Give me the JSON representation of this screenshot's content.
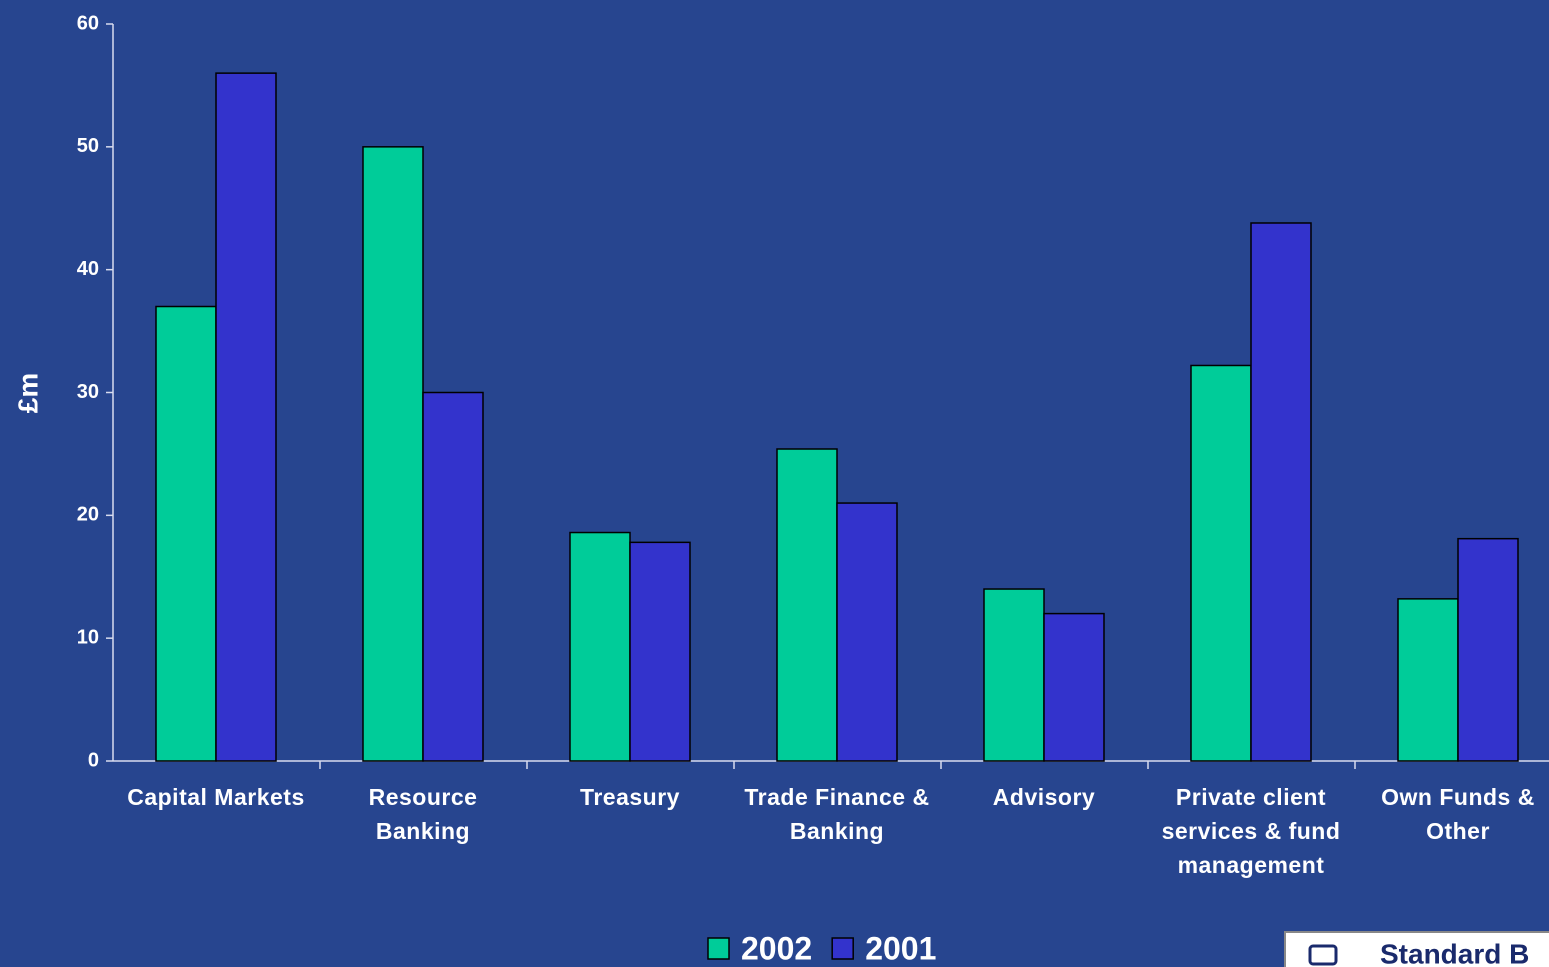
{
  "chart_data": {
    "type": "bar",
    "ylabel": "£m",
    "categories": [
      "Capital Markets",
      "Resource Banking",
      "Treasury",
      "Trade Finance & Banking",
      "Advisory",
      "Private client services & fund management",
      "Own Funds & Other"
    ],
    "series": [
      {
        "name": "2002",
        "color": "#00cc99",
        "values": [
          37,
          50,
          18.6,
          25.4,
          14,
          32.2,
          13.2
        ]
      },
      {
        "name": "2001",
        "color": "#3333cc",
        "values": [
          56,
          30,
          17.8,
          21,
          12,
          43.8,
          18.1
        ]
      }
    ],
    "ylim": [
      0,
      60
    ],
    "yticks": [
      0,
      10,
      20,
      30,
      40,
      50,
      60
    ],
    "grid": false,
    "legend": "bottom",
    "logo_text": "Standard B"
  }
}
